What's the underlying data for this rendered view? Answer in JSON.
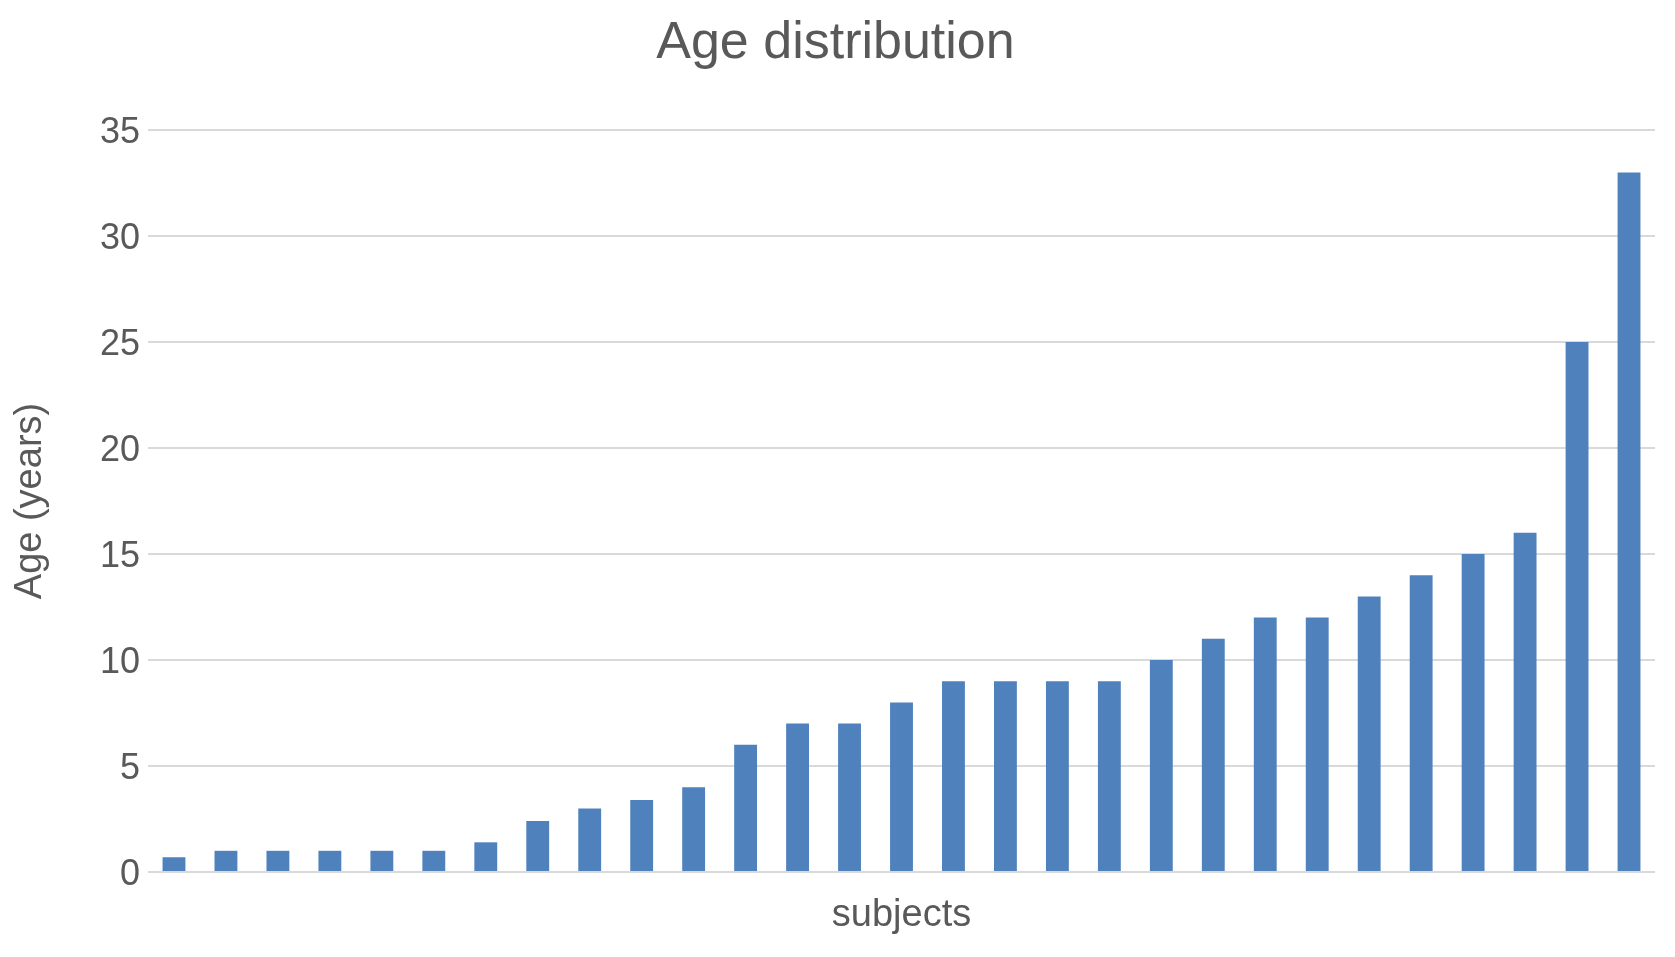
{
  "chart_data": {
    "type": "bar",
    "title": "Age distribution",
    "xlabel": "subjects",
    "ylabel": "Age (years)",
    "categories": [
      null,
      null,
      null,
      null,
      null,
      null,
      null,
      null,
      null,
      null,
      null,
      null,
      null,
      null,
      null,
      null,
      null,
      null,
      null,
      null,
      null,
      null,
      null,
      null,
      null,
      null,
      null,
      null,
      null
    ],
    "values": [
      0.7,
      1,
      1,
      1,
      1,
      1,
      1.4,
      2.4,
      3,
      3.4,
      4,
      6,
      7,
      7,
      8,
      9,
      9,
      9,
      9,
      10,
      11,
      12,
      12,
      13,
      14,
      15,
      16,
      25,
      33
    ],
    "color": "#4f81bd",
    "ylim": [
      0,
      35
    ],
    "yticks": [
      0,
      5,
      10,
      15,
      20,
      25,
      30,
      35
    ],
    "grid": "y"
  }
}
